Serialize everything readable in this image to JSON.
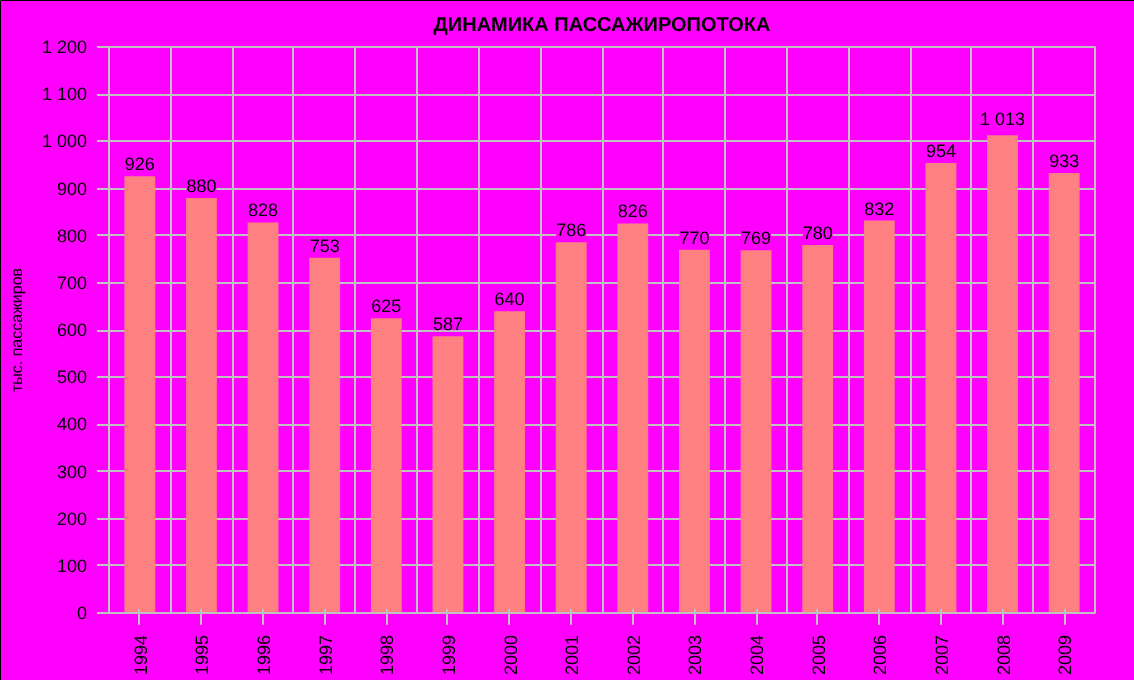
{
  "chart_data": {
    "type": "bar",
    "title": "ДИНАМИКА ПАССАЖИРОПОТОКА",
    "ylabel": "тыс. пассажиров",
    "categories": [
      "1994",
      "1995",
      "1996",
      "1997",
      "1998",
      "1999",
      "2000",
      "2001",
      "2002",
      "2003",
      "2004",
      "2005",
      "2006",
      "2007",
      "2008",
      "2009"
    ],
    "values": [
      926,
      880,
      828,
      753,
      625,
      587,
      640,
      786,
      826,
      770,
      769,
      780,
      832,
      954,
      1013,
      933
    ],
    "value_labels": [
      "926",
      "880",
      "828",
      "753",
      "625",
      "587",
      "640",
      "786",
      "826",
      "770",
      "769",
      "780",
      "832",
      "954",
      "1 013",
      "933"
    ],
    "color": "#ff8080",
    "ylim": [
      0,
      1200
    ],
    "yticks": [
      0,
      100,
      200,
      300,
      400,
      500,
      600,
      700,
      800,
      900,
      {
        "value": 1000,
        "label": "1 000"
      },
      {
        "value": 1100,
        "label": "1 100"
      },
      {
        "value": 1200,
        "label": "1 200"
      }
    ],
    "grid": true
  }
}
